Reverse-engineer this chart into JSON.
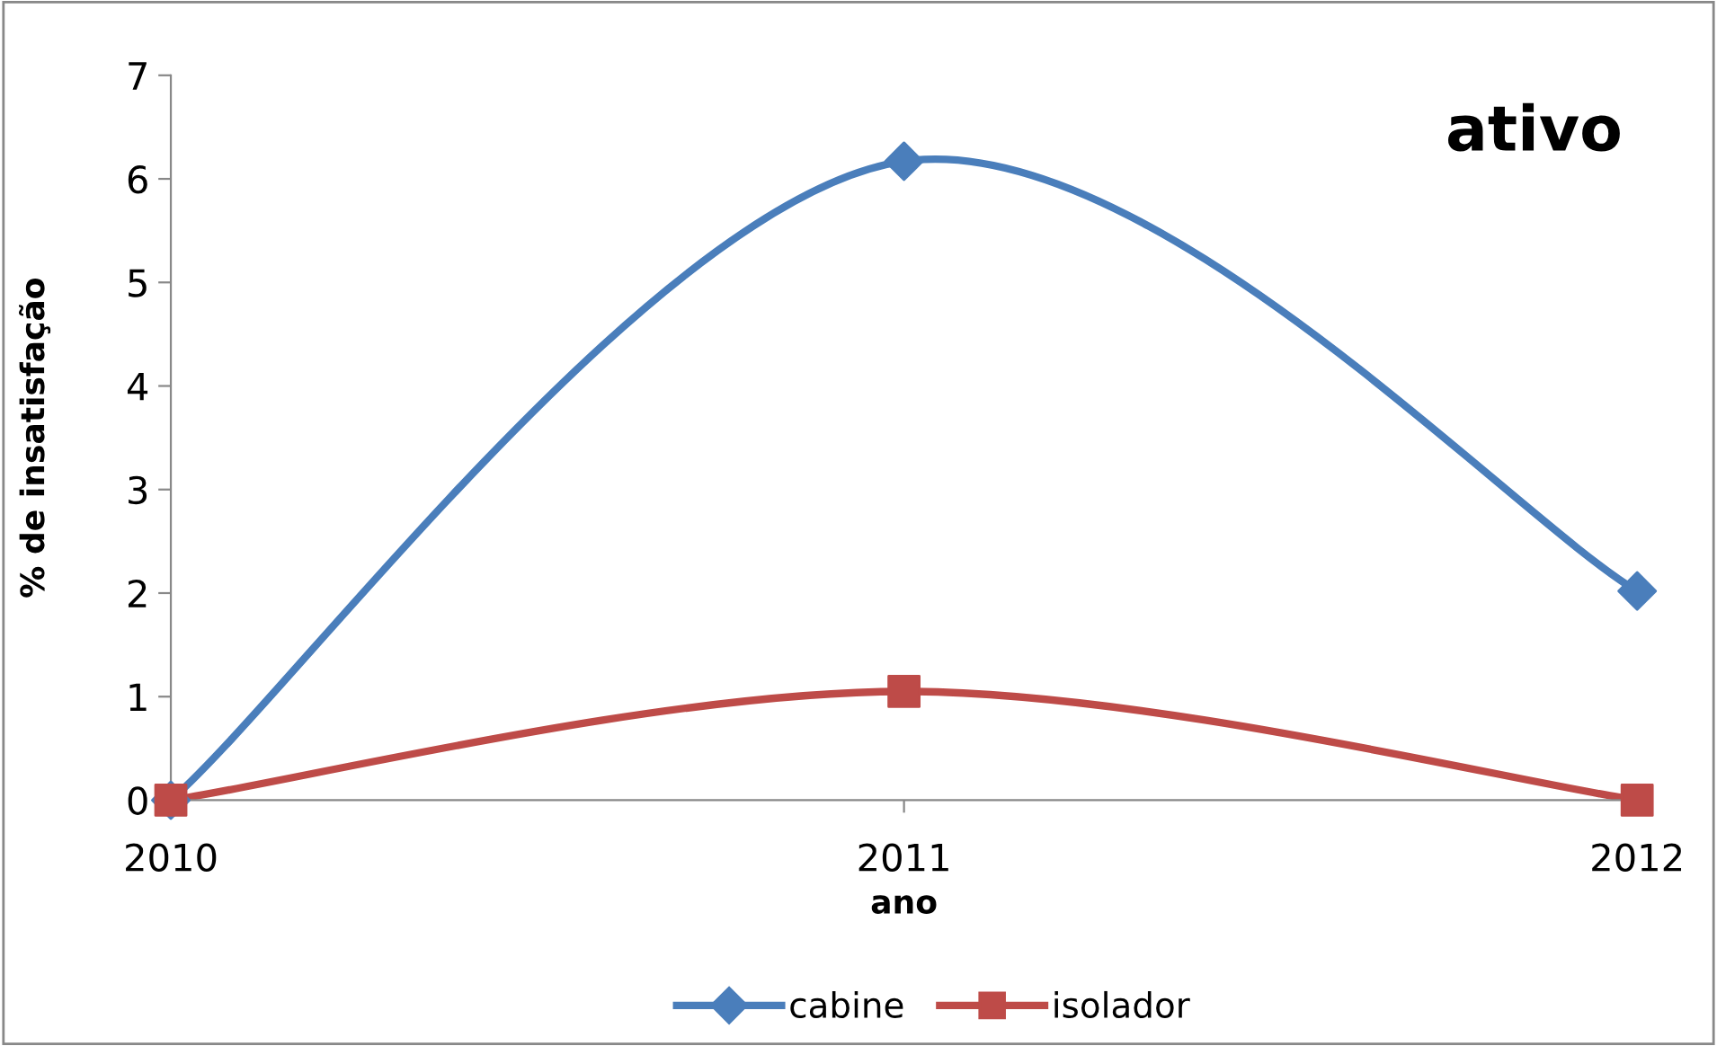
{
  "chart_data": {
    "type": "line",
    "title": "ativo",
    "xlabel": "ano",
    "ylabel": "% de insatisfação",
    "categories": [
      "2010",
      "2011",
      "2012"
    ],
    "series": [
      {
        "name": "cabine",
        "color": "#4a7ebb",
        "marker": "diamond",
        "values": [
          0,
          6.17,
          2.02
        ]
      },
      {
        "name": "isolador",
        "color": "#be4b48",
        "marker": "square",
        "values": [
          0,
          1.05,
          0
        ]
      }
    ],
    "ylim": [
      0,
      7
    ],
    "yticks": [
      0,
      1,
      2,
      3,
      4,
      5,
      6,
      7
    ],
    "grid": false,
    "legend": "bottom",
    "line_style": "solid"
  }
}
